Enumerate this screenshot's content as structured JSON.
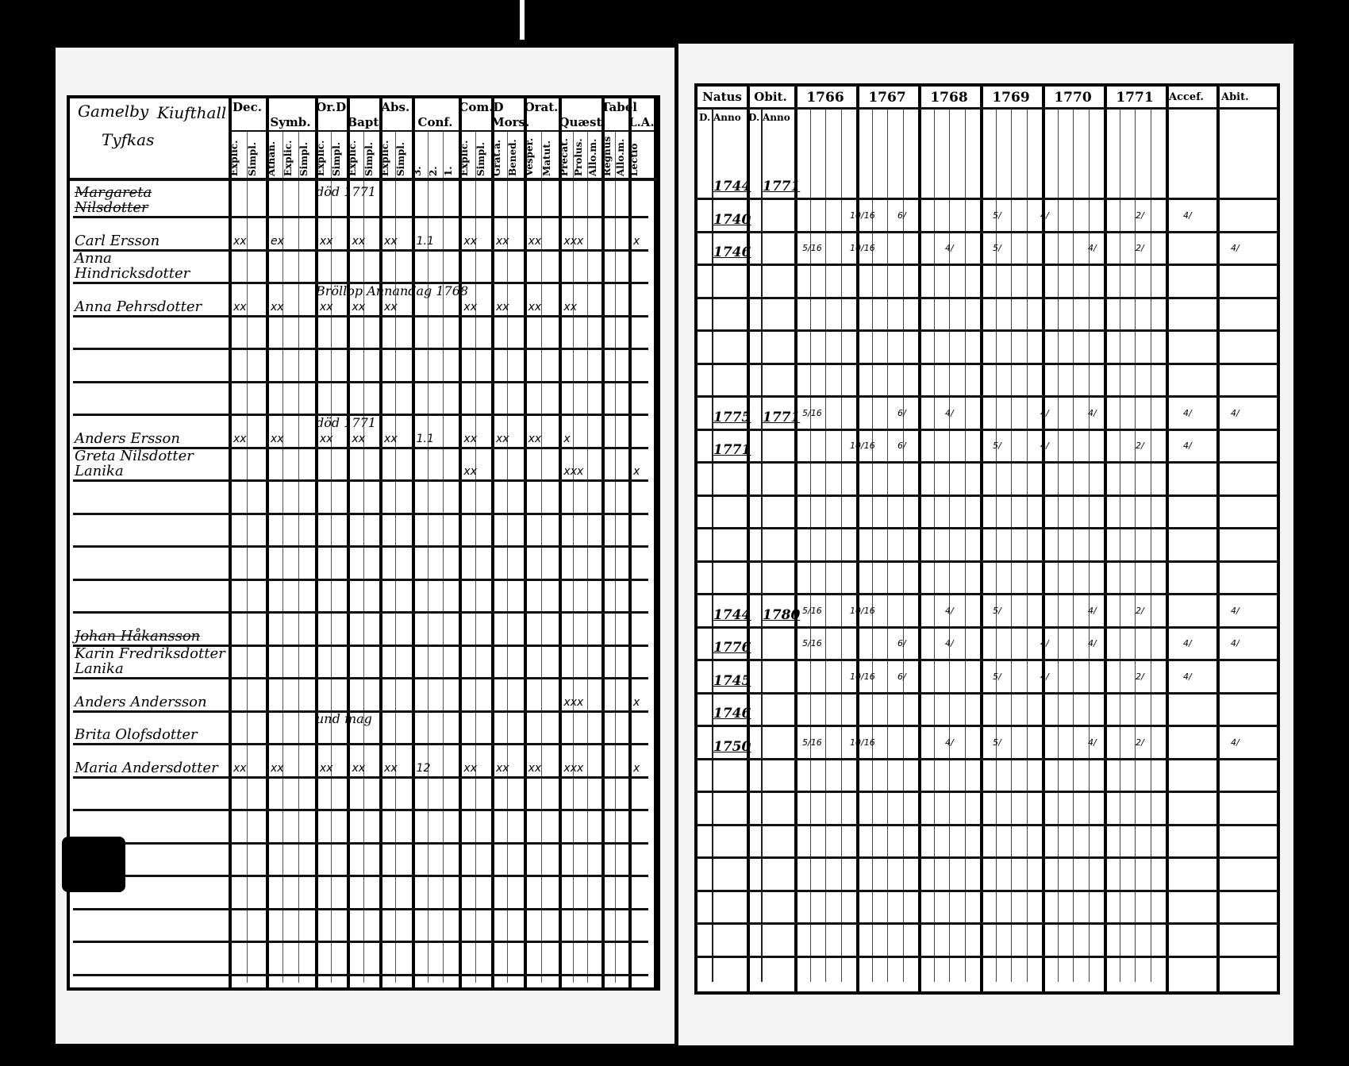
{
  "left_page": {
    "corner_heading": [
      "Gamelby",
      "Tyfkas",
      "Kiufthall"
    ],
    "headers": [
      {
        "label": "Dec.",
        "subs": [
          "Explic.",
          "Simpl."
        ]
      },
      {
        "label": "Symb.",
        "subs": [
          "Athan.",
          "Explic.",
          "Simpl."
        ]
      },
      {
        "label": "Or.D",
        "subs": [
          "Explic.",
          "Simpl."
        ]
      },
      {
        "label": "Bapt.",
        "subs": [
          "Explic.",
          "Simpl."
        ]
      },
      {
        "label": "Abs.",
        "subs": [
          "Explic.",
          "Simpl."
        ]
      },
      {
        "label": "Conf.",
        "subs": [
          "3.",
          "2.",
          "1."
        ]
      },
      {
        "label": "Com.D",
        "subs": [
          "Explic.",
          "Simpl."
        ]
      },
      {
        "label": "Mors.",
        "subs": [
          "Grat.a.",
          "Bened."
        ]
      },
      {
        "label": "Orat.",
        "subs": [
          "Vesper.",
          "Matut."
        ]
      },
      {
        "label": "Quæst.",
        "subs": [
          "Precat.",
          "Prolus.",
          "Allo.m."
        ]
      },
      {
        "label": "Tabel",
        "subs": [
          "Regnus",
          "Allo.m."
        ]
      },
      {
        "label": "L.A.",
        "subs": [
          "Lectio"
        ]
      }
    ],
    "rows": [
      {
        "name": "Margareta Nilsdotter",
        "struck": true,
        "note": "död 1771",
        "marks": []
      },
      {
        "name": "Carl Ersson",
        "marks": [
          "xx",
          "ex",
          "xx",
          "xx",
          "xx",
          "1.1",
          "xx",
          "xx",
          "xx",
          "xxx",
          "",
          "x"
        ]
      },
      {
        "name": "Anna Hindricksdotter",
        "marks": []
      },
      {
        "name": "Anna Pehrsdotter",
        "note": "Bröllop Annandag 1768",
        "marks": [
          "xx",
          "xx",
          "xx",
          "xx",
          "xx",
          "",
          "xx",
          "xx",
          "xx",
          "xx",
          "",
          ""
        ]
      },
      {
        "name": "",
        "marks": []
      },
      {
        "name": "",
        "marks": []
      },
      {
        "name": "",
        "marks": []
      },
      {
        "name": "Anders Ersson",
        "note": "död 1771",
        "marks": [
          "xx",
          "xx",
          "xx",
          "xx",
          "xx",
          "1.1",
          "xx",
          "xx",
          "xx",
          "x",
          "",
          ""
        ]
      },
      {
        "name": "Greta Nilsdotter Lanika",
        "marks": [
          "",
          "",
          "",
          "",
          "",
          "",
          "xx",
          "",
          "",
          "xxx",
          "",
          "x"
        ]
      },
      {
        "name": "",
        "marks": []
      },
      {
        "name": "",
        "marks": []
      },
      {
        "name": "",
        "marks": []
      },
      {
        "name": "",
        "marks": []
      },
      {
        "name": "Johan Håkansson",
        "struck": true,
        "marks": []
      },
      {
        "name": "Karin Fredriksdotter Lanika",
        "marks": []
      },
      {
        "name": "Anders Andersson",
        "marks": [
          "",
          "",
          "",
          "",
          "",
          "",
          "",
          "",
          "",
          "xxx",
          "",
          "x"
        ]
      },
      {
        "name": "Brita Olofsdotter",
        "note": "und mag",
        "marks": []
      },
      {
        "name": "Maria Andersdotter",
        "marks": [
          "xx",
          "xx",
          "xx",
          "xx",
          "xx",
          "12",
          "xx",
          "xx",
          "xx",
          "xxx",
          "",
          "x"
        ]
      }
    ]
  },
  "right_page": {
    "headers": {
      "natus": "Natus",
      "obit": "Obit.",
      "d": "D.",
      "anno": "Anno",
      "years": [
        "1766",
        "1767",
        "1768",
        "1769",
        "1770",
        "1771"
      ],
      "accef": "Accef.",
      "abit": "Abit."
    },
    "rows": [
      {
        "natus": "1744",
        "obit": "1771"
      },
      {
        "natus": "1740",
        "obit": ""
      },
      {
        "natus": "1746",
        "obit": ""
      },
      {
        "natus": "",
        "obit": ""
      },
      {
        "natus": "",
        "obit": ""
      },
      {
        "natus": "",
        "obit": ""
      },
      {
        "natus": "",
        "obit": ""
      },
      {
        "natus": "1775",
        "obit": "1771"
      },
      {
        "natus": "1771",
        "obit": ""
      },
      {
        "natus": "",
        "obit": ""
      },
      {
        "natus": "",
        "obit": ""
      },
      {
        "natus": "",
        "obit": ""
      },
      {
        "natus": "",
        "obit": ""
      },
      {
        "natus": "1744",
        "obit": "1780"
      },
      {
        "natus": "1776",
        "obit": ""
      },
      {
        "natus": "1745",
        "obit": ""
      },
      {
        "natus": "1746",
        "obit": ""
      },
      {
        "natus": "1750",
        "obit": ""
      }
    ],
    "fraction_marks": [
      "5/16",
      "10/16",
      "6/",
      "4/",
      "5/",
      "4/",
      "4/",
      "2/",
      "4/",
      "4/"
    ]
  }
}
